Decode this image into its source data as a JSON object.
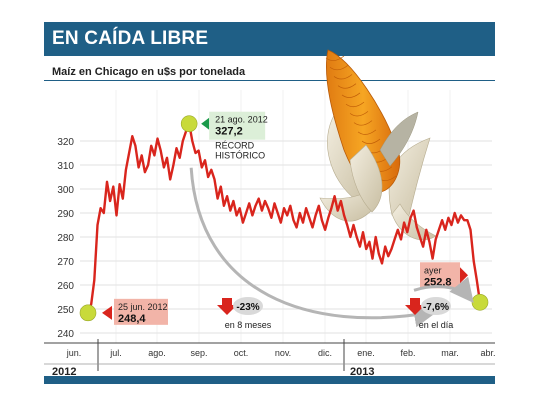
{
  "header": {
    "title": "EN CAÍDA LIBRE"
  },
  "colors": {
    "header_bg": "#1f5f86",
    "line": "#d9251d",
    "marker": "#c8da3a",
    "up": "#1a9a4a",
    "down": "#d9251d",
    "label_pink": "#f2b4a8",
    "label_green": "#dcefd8",
    "arrow_gray": "#b5b5b5"
  },
  "chart_data": {
    "type": "line",
    "title": "Maíz en Chicago en u$s por tonelada",
    "xlabel": "",
    "ylabel": "",
    "ylim": [
      240,
      330
    ],
    "y_ticks": [
      240,
      250,
      260,
      270,
      280,
      290,
      300,
      310,
      320
    ],
    "months": [
      "jun.",
      "jul.",
      "ago.",
      "sep.",
      "oct.",
      "nov.",
      "dic.",
      "ene.",
      "feb.",
      "mar.",
      "abr."
    ],
    "years": [
      "2012",
      "2013"
    ],
    "series": [
      {
        "values": [
          248.4,
          252,
          262,
          285,
          292,
          290,
          303,
          295,
          301,
          289,
          302,
          296,
          308,
          315,
          322,
          318,
          309,
          314,
          307,
          310,
          318,
          314,
          321,
          316,
          309,
          313,
          304,
          310,
          317,
          313,
          320,
          324,
          327.2,
          320,
          315,
          316,
          309,
          312,
          305,
          308,
          304,
          296,
          301,
          293,
          297,
          291,
          295,
          289,
          292,
          286,
          290,
          294,
          289,
          293,
          296,
          291,
          295,
          292,
          288,
          294,
          290,
          286,
          292,
          289,
          293,
          287,
          284,
          290,
          286,
          292,
          288,
          284,
          289,
          293,
          287,
          283,
          288,
          292,
          297,
          291,
          295,
          289,
          285,
          280,
          285,
          280,
          276,
          282,
          275,
          278,
          271,
          280,
          273,
          269,
          276,
          272,
          275,
          279,
          283,
          279,
          286,
          282,
          288,
          291,
          284,
          280,
          276,
          283,
          278,
          271,
          279,
          283,
          287,
          283,
          288,
          285,
          290,
          286,
          289,
          287,
          287,
          283,
          270,
          262,
          252.8
        ],
        "color": "#d9251d"
      }
    ],
    "annotations": [
      {
        "date": "21 ago. 2012",
        "value": "327,2",
        "note_line1": "RÉCORD",
        "note_line2": "HISTÓRICO"
      },
      {
        "date": "25 jun. 2012",
        "value": "248,4"
      },
      {
        "date": "ayer",
        "value": "252,8"
      },
      {
        "change": "-23%",
        "label": "en 8 meses"
      },
      {
        "change": "-7,6%",
        "label": "en el día"
      }
    ]
  }
}
